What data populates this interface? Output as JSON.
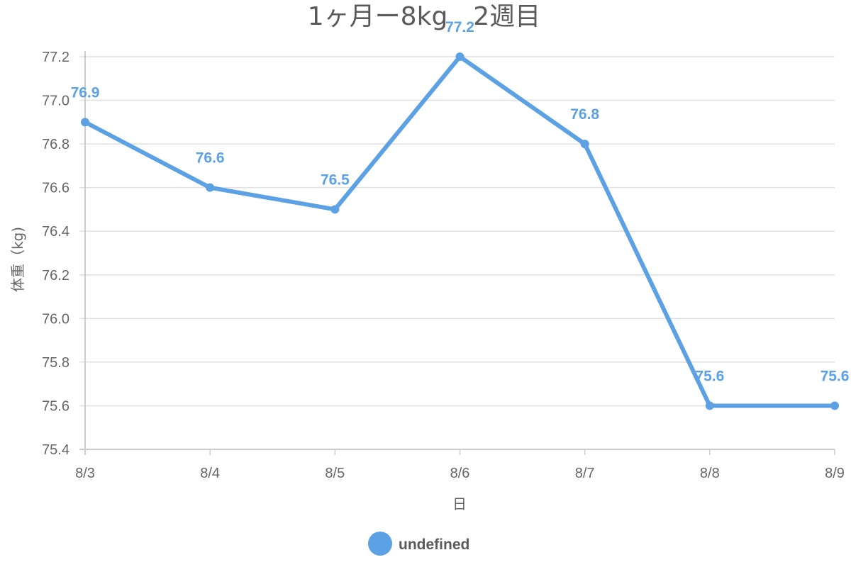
{
  "chart_data": {
    "type": "line",
    "title": "1ヶ月ー8kg　2週目",
    "xlabel": "日",
    "ylabel": "体重（kg)",
    "categories": [
      "8/3",
      "8/4",
      "8/5",
      "8/6",
      "8/7",
      "8/8",
      "8/9"
    ],
    "series": [
      {
        "name": "undefined",
        "values": [
          76.9,
          76.6,
          76.5,
          77.2,
          76.8,
          75.6,
          75.6
        ],
        "color": "#5ba1e3"
      }
    ],
    "data_labels": [
      "76.9",
      "76.6",
      "76.5",
      "77.2",
      "76.8",
      "75.6",
      "75.6"
    ],
    "ylim": [
      75.4,
      77.2
    ],
    "yticks": [
      "75.4",
      "75.6",
      "75.8",
      "76.0",
      "76.2",
      "76.4",
      "76.6",
      "76.8",
      "77.0",
      "77.2"
    ],
    "grid": true,
    "legend_position": "bottom",
    "colors": {
      "grid": "#e0e0e0",
      "axis": "#cccccc",
      "text": "#666666",
      "title": "#5a5a5a"
    }
  }
}
